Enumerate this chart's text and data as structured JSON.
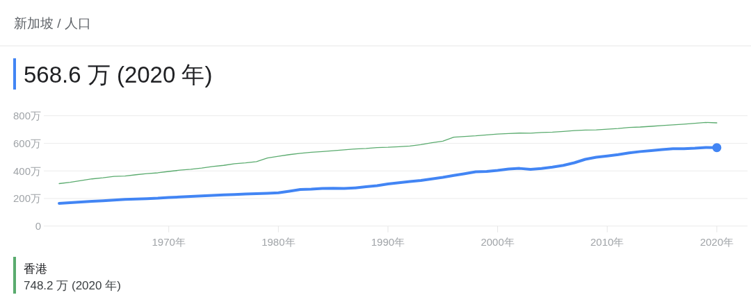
{
  "chart_data": {
    "type": "line",
    "title": "新加坡 / 人口",
    "subtitle": "568.6 万 (2020 年)",
    "x": [
      1960,
      1961,
      1962,
      1963,
      1964,
      1965,
      1966,
      1967,
      1968,
      1969,
      1970,
      1971,
      1972,
      1973,
      1974,
      1975,
      1976,
      1977,
      1978,
      1979,
      1980,
      1981,
      1982,
      1983,
      1984,
      1985,
      1986,
      1987,
      1988,
      1989,
      1990,
      1991,
      1992,
      1993,
      1994,
      1995,
      1996,
      1997,
      1998,
      1999,
      2000,
      2001,
      2002,
      2003,
      2004,
      2005,
      2006,
      2007,
      2008,
      2009,
      2010,
      2011,
      2012,
      2013,
      2014,
      2015,
      2016,
      2017,
      2018,
      2019,
      2020
    ],
    "series": [
      {
        "color": "#4285f4",
        "values": [
          165,
          170,
          175,
          180,
          184,
          189,
          193,
          196,
          199,
          202,
          207,
          211,
          215,
          219,
          223,
          226,
          229,
          233,
          235,
          238,
          241,
          253,
          265,
          268,
          273,
          274,
          273,
          277,
          285,
          293,
          305,
          314,
          323,
          331,
          342,
          353,
          367,
          380,
          393,
          396,
          403,
          414,
          418,
          411,
          417,
          427,
          440,
          459,
          484,
          499,
          508,
          518,
          531,
          540,
          547,
          554,
          561,
          561,
          564,
          570,
          568.6
        ]
      },
      {
        "name": "香港",
        "color": "#5aab6e",
        "values": [
          308,
          317,
          330,
          342,
          350,
          360,
          363,
          372,
          380,
          386,
          396,
          405,
          412,
          421,
          432,
          440,
          452,
          458,
          467,
          493,
          506,
          518,
          527,
          535,
          540,
          546,
          553,
          559,
          563,
          569,
          571,
          575,
          580,
          590,
          604,
          616,
          644,
          649,
          654,
          661,
          667,
          671,
          674,
          673,
          678,
          681,
          686,
          692,
          696,
          697,
          702,
          707,
          715,
          718,
          723,
          729,
          734,
          739,
          745,
          751,
          748.2
        ]
      },
      {
        "type": "scatter",
        "x": [
          2020
        ],
        "values": [
          568.6
        ],
        "color": "#4285f4",
        "marker": "circle"
      }
    ],
    "annotations": [
      "748.2 万 (2020 年)"
    ],
    "xlim": [
      1958.6,
      2022.8
    ],
    "ylim": [
      0,
      800
    ],
    "xticks": [
      {
        "value": 1970,
        "label": "1970年"
      },
      {
        "value": 1980,
        "label": "1980年"
      },
      {
        "value": 1990,
        "label": "1990年"
      },
      {
        "value": 2000,
        "label": "2000年"
      },
      {
        "value": 2010,
        "label": "2010年"
      },
      {
        "value": 2020,
        "label": "2020年"
      }
    ],
    "yticks": [
      0,
      {
        "value": 200,
        "label": "200万"
      },
      {
        "value": 400,
        "label": "400万"
      },
      {
        "value": 600,
        "label": "600万"
      },
      {
        "value": 800,
        "label": "800万"
      }
    ],
    "grid": "y",
    "legend": "bottom left"
  }
}
